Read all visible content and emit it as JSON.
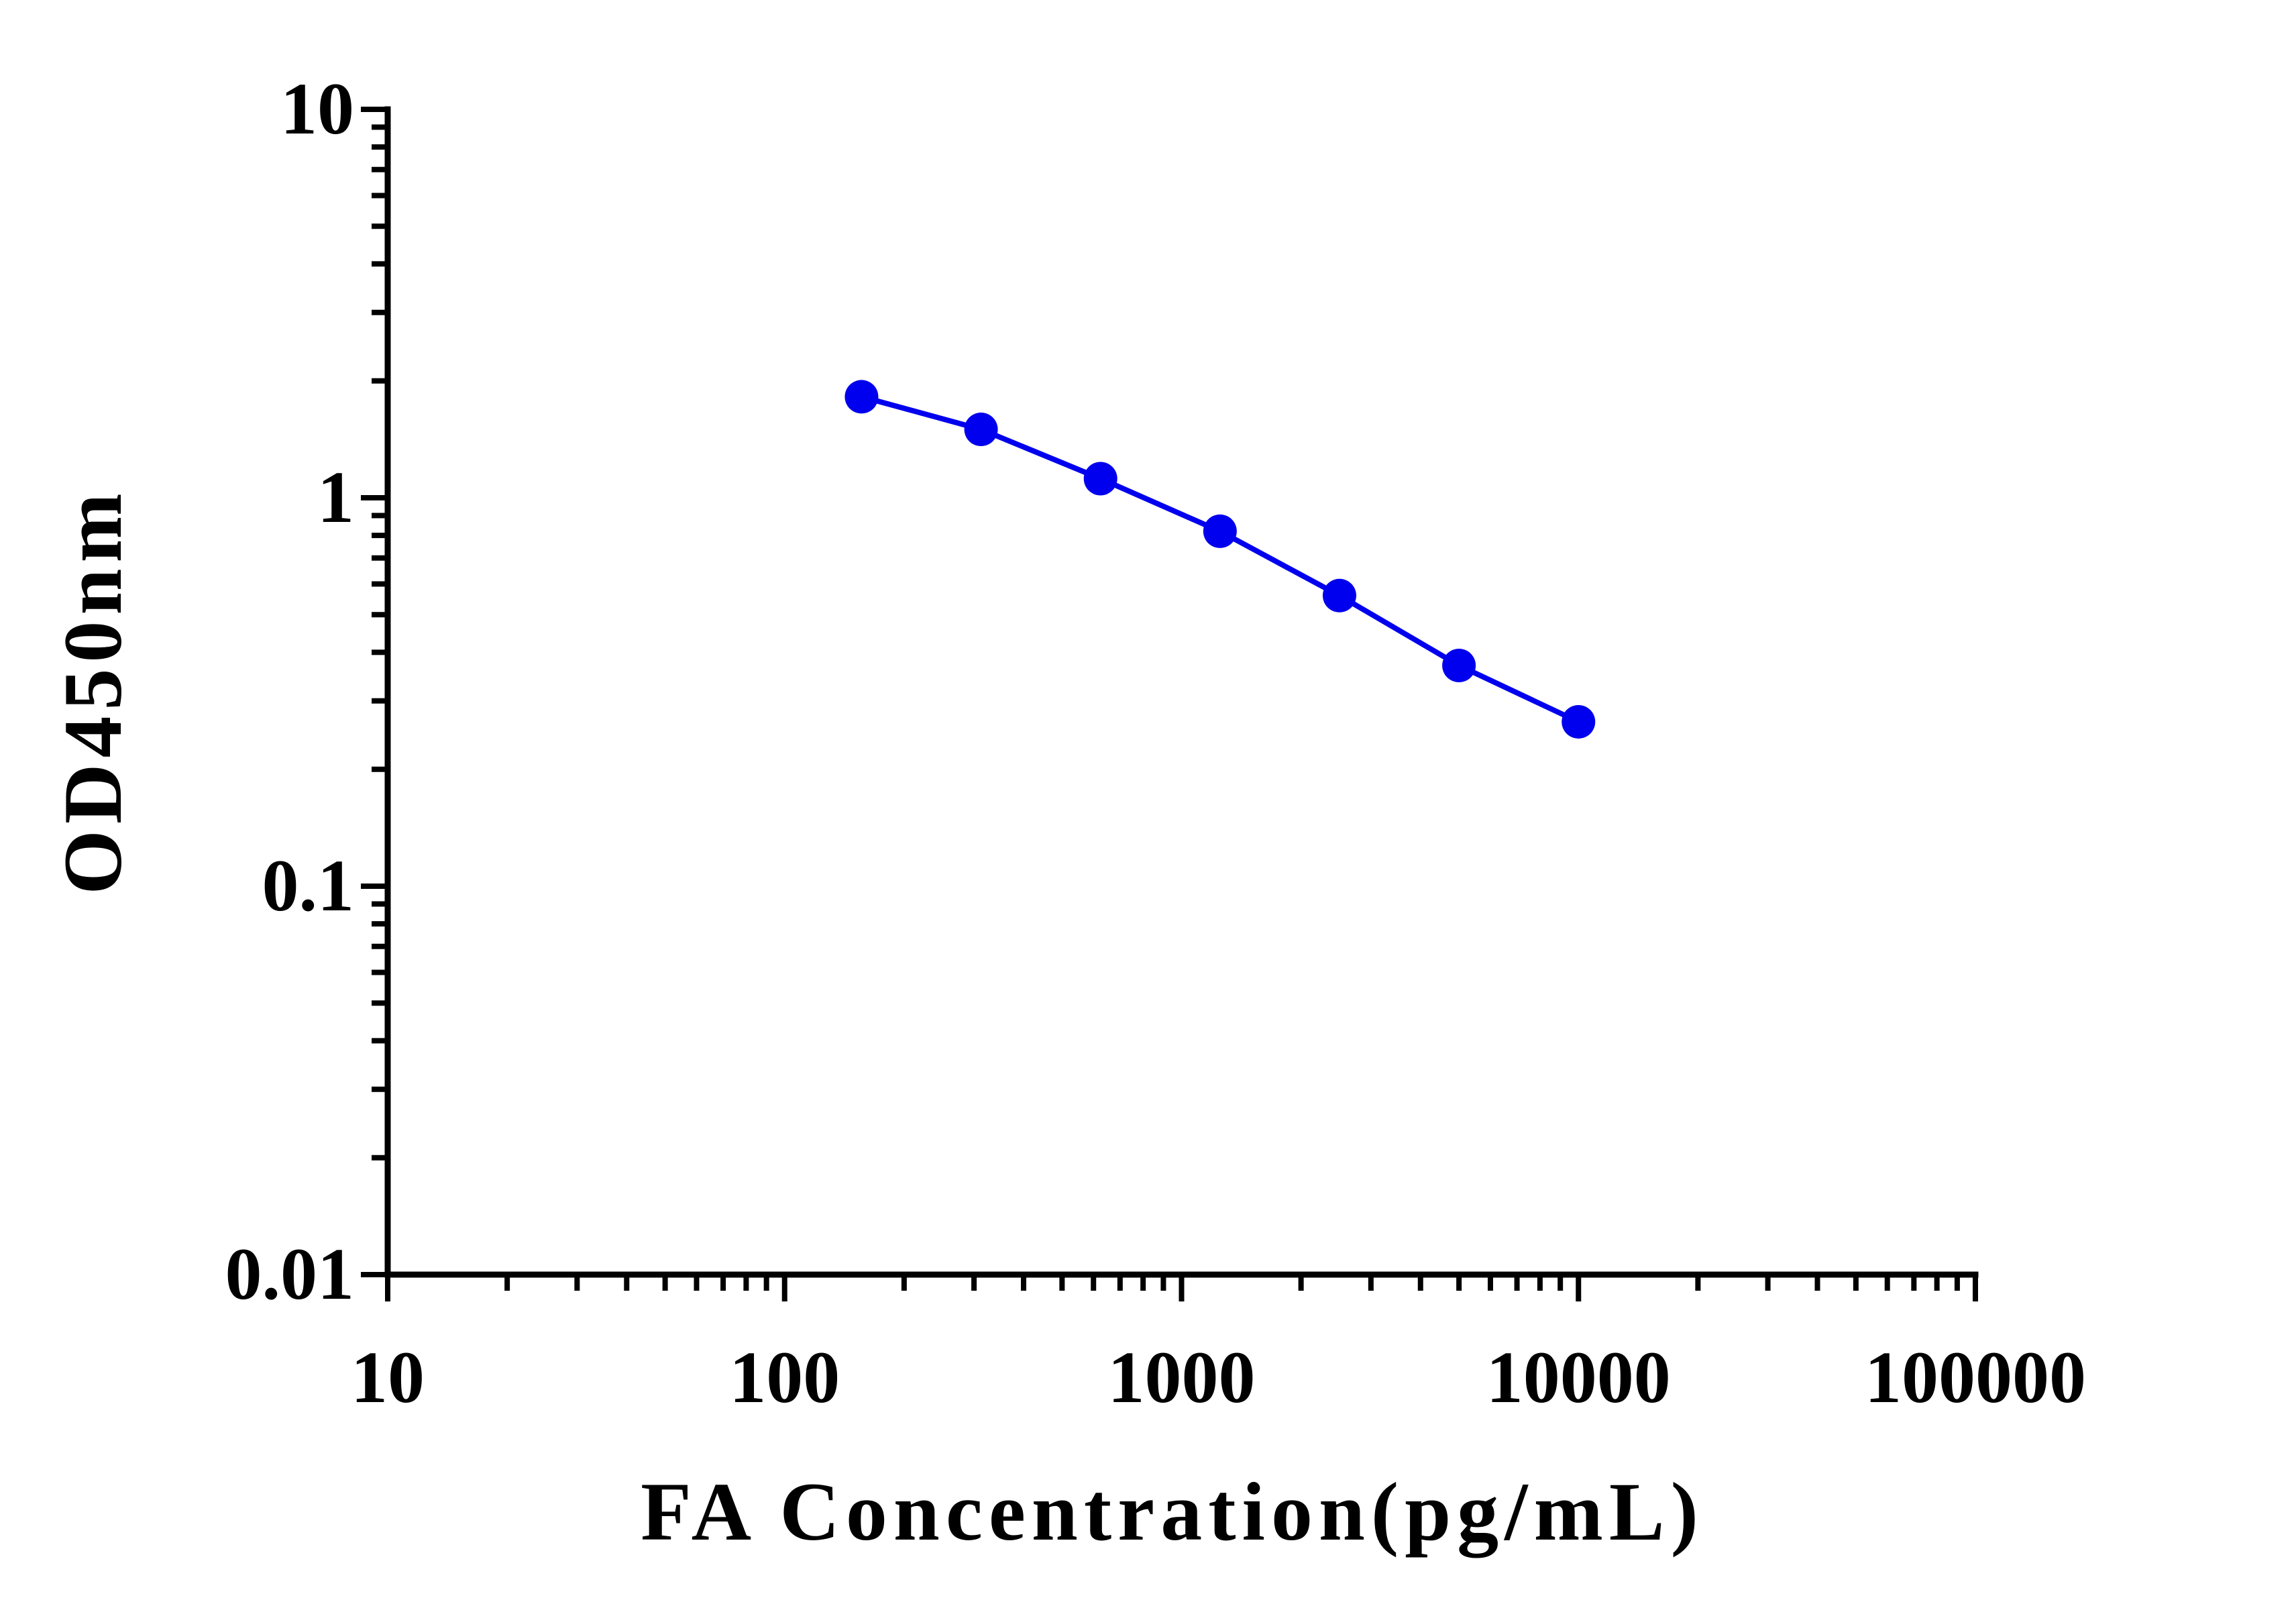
{
  "chart_data": {
    "type": "line",
    "xlabel": "FA Concentration(pg/mL)",
    "ylabel": "OD450nm",
    "xscale": "log",
    "yscale": "log",
    "xlim": [
      10,
      100000
    ],
    "ylim": [
      0.01,
      10
    ],
    "xticks": [
      "10",
      "100",
      "1000",
      "10000",
      "100000"
    ],
    "yticks": [
      "0.01",
      "0.1",
      "1",
      "10"
    ],
    "grid": false,
    "series": [
      {
        "color": "#0000ee",
        "marker": "circle",
        "x": [
          156.25,
          312.5,
          625,
          1250,
          2500,
          5000,
          10000
        ],
        "y": [
          1.82,
          1.5,
          1.12,
          0.82,
          0.56,
          0.37,
          0.265
        ]
      }
    ]
  }
}
